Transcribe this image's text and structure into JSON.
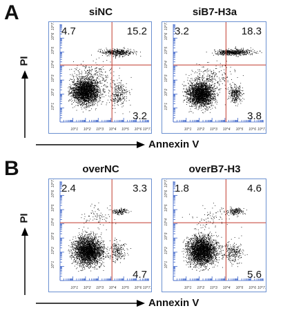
{
  "figure": {
    "axis_x_label": "Annexin V",
    "axis_y_label": "PI"
  },
  "panels": [
    {
      "letter": "A"
    },
    {
      "letter": "B"
    }
  ],
  "chart_data": [
    {
      "type": "scatter",
      "title": "siNC",
      "panel": "A",
      "xscale": "log",
      "yscale": "log",
      "xlim": [
        1,
        10000000
      ],
      "ylim": [
        1,
        10000000
      ],
      "x_tick_labels": [
        "10^1",
        "10^2",
        "10^3",
        "10^4",
        "10^5",
        "10^6",
        "10^7.2"
      ],
      "y_tick_labels": [
        "10^1",
        "10^2",
        "10^3",
        "10^4",
        "10^5",
        "10^6",
        "10^7.2"
      ],
      "gate": {
        "x": 12000,
        "y": 12000
      },
      "quadrants": {
        "upper_left": "4.7",
        "upper_right": "15.2",
        "lower_left": "",
        "lower_right": "3.2"
      },
      "clusters": [
        {
          "cx": 2.0,
          "cy": 2.2,
          "sx": 0.55,
          "sy": 0.45,
          "n": 2600
        },
        {
          "cx": 4.6,
          "cy": 2.0,
          "sx": 0.35,
          "sy": 0.4,
          "n": 260
        },
        {
          "cx": 4.5,
          "cy": 5.0,
          "sx": 0.65,
          "sy": 0.12,
          "n": 420
        },
        {
          "cx": 2.6,
          "cy": 3.3,
          "sx": 0.9,
          "sy": 0.5,
          "n": 260
        }
      ]
    },
    {
      "type": "scatter",
      "title": "siB7-H3a",
      "panel": "A",
      "xscale": "log",
      "yscale": "log",
      "xlim": [
        1,
        10000000
      ],
      "ylim": [
        1,
        10000000
      ],
      "x_tick_labels": [
        "10^1",
        "10^2",
        "10^3",
        "10^4",
        "10^5",
        "10^6",
        "10^7.2"
      ],
      "y_tick_labels": [
        "10^1",
        "10^2",
        "10^3",
        "10^4",
        "10^5",
        "10^6",
        "10^7.2"
      ],
      "gate": {
        "x": 12000,
        "y": 12000
      },
      "quadrants": {
        "upper_left": "3.2",
        "upper_right": "18.3",
        "lower_left": "",
        "lower_right": "3.8"
      },
      "clusters": [
        {
          "cx": 2.1,
          "cy": 2.0,
          "sx": 0.5,
          "sy": 0.42,
          "n": 2400
        },
        {
          "cx": 4.8,
          "cy": 2.0,
          "sx": 0.25,
          "sy": 0.3,
          "n": 300
        },
        {
          "cx": 4.7,
          "cy": 5.0,
          "sx": 0.7,
          "sy": 0.1,
          "n": 560
        },
        {
          "cx": 2.8,
          "cy": 3.2,
          "sx": 0.9,
          "sy": 0.45,
          "n": 240
        }
      ]
    },
    {
      "type": "scatter",
      "title": "overNC",
      "panel": "B",
      "xscale": "log",
      "yscale": "log",
      "xlim": [
        1,
        10000000
      ],
      "ylim": [
        1,
        10000000
      ],
      "x_tick_labels": [
        "10^1",
        "10^2",
        "10^3",
        "10^4",
        "10^5",
        "10^6",
        "10^7.2"
      ],
      "y_tick_labels": [
        "10^1",
        "10^2",
        "10^3",
        "10^4",
        "10^5",
        "10^6",
        "10^7.2"
      ],
      "gate": {
        "x": 12000,
        "y": 12000
      },
      "quadrants": {
        "upper_left": "2.4",
        "upper_right": "3.3",
        "lower_left": "",
        "lower_right": "4.7"
      },
      "clusters": [
        {
          "cx": 2.2,
          "cy": 2.1,
          "sx": 0.55,
          "sy": 0.5,
          "n": 2900
        },
        {
          "cx": 4.5,
          "cy": 2.1,
          "sx": 0.35,
          "sy": 0.35,
          "n": 220
        },
        {
          "cx": 4.7,
          "cy": 4.9,
          "sx": 0.3,
          "sy": 0.12,
          "n": 140
        },
        {
          "cx": 3.0,
          "cy": 4.5,
          "sx": 0.7,
          "sy": 0.4,
          "n": 80
        }
      ]
    },
    {
      "type": "scatter",
      "title": "overB7-H3",
      "panel": "B",
      "xscale": "log",
      "yscale": "log",
      "xlim": [
        1,
        10000000
      ],
      "ylim": [
        1,
        10000000
      ],
      "x_tick_labels": [
        "10^1",
        "10^2",
        "10^3",
        "10^4",
        "10^5",
        "10^6",
        "10^7.2"
      ],
      "y_tick_labels": [
        "10^1",
        "10^2",
        "10^3",
        "10^4",
        "10^5",
        "10^6",
        "10^7.2"
      ],
      "gate": {
        "x": 12000,
        "y": 12000
      },
      "quadrants": {
        "upper_left": "1.8",
        "upper_right": "4.6",
        "lower_left": "",
        "lower_right": "5.6"
      },
      "clusters": [
        {
          "cx": 2.2,
          "cy": 2.1,
          "sx": 0.55,
          "sy": 0.5,
          "n": 2900
        },
        {
          "cx": 4.6,
          "cy": 2.0,
          "sx": 0.35,
          "sy": 0.35,
          "n": 260
        },
        {
          "cx": 4.8,
          "cy": 4.9,
          "sx": 0.35,
          "sy": 0.12,
          "n": 170
        },
        {
          "cx": 3.2,
          "cy": 4.5,
          "sx": 0.8,
          "sy": 0.4,
          "n": 80
        }
      ]
    }
  ],
  "colors": {
    "dots": "#000000",
    "gate_line": "#c0392b",
    "axis_ticks": "#3f66c9",
    "frame": "#6a8fd0"
  }
}
